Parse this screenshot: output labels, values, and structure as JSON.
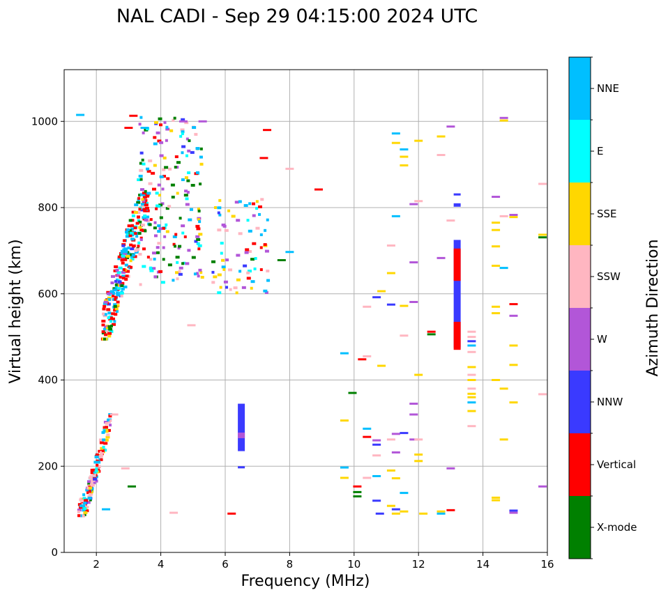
{
  "chart_data": {
    "type": "scatter",
    "title": "NAL CADI - Sep 29 04:15:00 2024 UTC",
    "xlabel": "Frequency (MHz)",
    "ylabel": "Virtual height (km)",
    "xlim": [
      1,
      16
    ],
    "ylim": [
      0,
      1120
    ],
    "xticks": [
      2,
      4,
      6,
      8,
      10,
      12,
      14,
      16
    ],
    "yticks": [
      0,
      200,
      400,
      600,
      800,
      1000
    ],
    "grid": true,
    "colorbar": {
      "label": "Azimuth Direction",
      "categories": [
        {
          "name": "X-mode",
          "color": "#008000"
        },
        {
          "name": "Vertical",
          "color": "#ff0000"
        },
        {
          "name": "NNW",
          "color": "#3a3aff"
        },
        {
          "name": "W",
          "color": "#b256d8"
        },
        {
          "name": "SSW",
          "color": "#ffb6c1"
        },
        {
          "name": "SSE",
          "color": "#ffd700"
        },
        {
          "name": "E",
          "color": "#00ffff"
        },
        {
          "name": "NNE",
          "color": "#00bfff"
        }
      ]
    },
    "clusters": [
      {
        "region": "low F-layer trace",
        "f": [
          1.45,
          2.45
        ],
        "h": [
          85,
          320
        ],
        "count": 150
      },
      {
        "region": "F-layer main trace",
        "f": [
          2.2,
          3.6
        ],
        "h": [
          495,
          830
        ],
        "count": 270
      },
      {
        "region": "upper spread",
        "f": [
          3.3,
          5.3
        ],
        "h": [
          620,
          1010
        ],
        "count": 190
      },
      {
        "region": "mid spread",
        "f": [
          5.6,
          7.4
        ],
        "h": [
          600,
          820
        ],
        "count": 75
      }
    ],
    "points": [
      {
        "f": 1.5,
        "h": 1015,
        "dir": "NNE"
      },
      {
        "f": 3.15,
        "h": 1013,
        "dir": "Vertical"
      },
      {
        "f": 3.0,
        "h": 985,
        "dir": "Vertical"
      },
      {
        "f": 3.5,
        "h": 985,
        "dir": "NNE"
      },
      {
        "f": 4.7,
        "h": 1000,
        "dir": "W"
      },
      {
        "f": 5.3,
        "h": 1000,
        "dir": "W"
      },
      {
        "f": 7.3,
        "h": 980,
        "dir": "Vertical"
      },
      {
        "f": 7.2,
        "h": 915,
        "dir": "Vertical"
      },
      {
        "f": 8.0,
        "h": 890,
        "dir": "SSW"
      },
      {
        "f": 8.9,
        "h": 842,
        "dir": "Vertical"
      },
      {
        "f": 7.75,
        "h": 678,
        "dir": "X-mode"
      },
      {
        "f": 8.0,
        "h": 697,
        "dir": "NNE"
      },
      {
        "f": 3.1,
        "h": 153,
        "dir": "X-mode"
      },
      {
        "f": 2.3,
        "h": 100,
        "dir": "NNE"
      },
      {
        "f": 2.9,
        "h": 195,
        "dir": "SSW"
      },
      {
        "f": 2.55,
        "h": 320,
        "dir": "SSW"
      },
      {
        "f": 4.4,
        "h": 92,
        "dir": "SSW"
      },
      {
        "f": 4.95,
        "h": 527,
        "dir": "SSW"
      },
      {
        "f": 6.2,
        "h": 90,
        "dir": "Vertical"
      },
      {
        "f": 9.7,
        "h": 462,
        "dir": "NNE"
      },
      {
        "f": 9.7,
        "h": 306,
        "dir": "SSE"
      },
      {
        "f": 9.7,
        "h": 197,
        "dir": "NNE"
      },
      {
        "f": 9.7,
        "h": 173,
        "dir": "SSE"
      },
      {
        "f": 9.95,
        "h": 370,
        "dir": "X-mode"
      },
      {
        "f": 10.1,
        "h": 153,
        "dir": "Vertical"
      },
      {
        "f": 10.1,
        "h": 140,
        "dir": "X-mode"
      },
      {
        "f": 10.1,
        "h": 130,
        "dir": "X-mode"
      },
      {
        "f": 10.25,
        "h": 448,
        "dir": "Vertical"
      },
      {
        "f": 10.4,
        "h": 455,
        "dir": "SSW"
      },
      {
        "f": 10.4,
        "h": 570,
        "dir": "SSW"
      },
      {
        "f": 10.4,
        "h": 287,
        "dir": "NNE"
      },
      {
        "f": 10.4,
        "h": 268,
        "dir": "Vertical"
      },
      {
        "f": 10.4,
        "h": 173,
        "dir": "SSW"
      },
      {
        "f": 10.7,
        "h": 592,
        "dir": "NNW"
      },
      {
        "f": 10.7,
        "h": 260,
        "dir": "W"
      },
      {
        "f": 10.7,
        "h": 250,
        "dir": "NNW"
      },
      {
        "f": 10.7,
        "h": 225,
        "dir": "SSW"
      },
      {
        "f": 10.7,
        "h": 177,
        "dir": "NNE"
      },
      {
        "f": 10.7,
        "h": 120,
        "dir": "NNW"
      },
      {
        "f": 10.8,
        "h": 90,
        "dir": "NNW"
      },
      {
        "f": 10.85,
        "h": 606,
        "dir": "SSE"
      },
      {
        "f": 10.85,
        "h": 433,
        "dir": "SSE"
      },
      {
        "f": 11.15,
        "h": 712,
        "dir": "SSW"
      },
      {
        "f": 11.15,
        "h": 648,
        "dir": "SSE"
      },
      {
        "f": 11.15,
        "h": 575,
        "dir": "NNW"
      },
      {
        "f": 11.15,
        "h": 262,
        "dir": "SSW"
      },
      {
        "f": 11.15,
        "h": 190,
        "dir": "SSE"
      },
      {
        "f": 11.15,
        "h": 108,
        "dir": "SSE"
      },
      {
        "f": 11.3,
        "h": 972,
        "dir": "NNE"
      },
      {
        "f": 11.3,
        "h": 950,
        "dir": "SSE"
      },
      {
        "f": 11.3,
        "h": 780,
        "dir": "NNE"
      },
      {
        "f": 11.3,
        "h": 275,
        "dir": "W"
      },
      {
        "f": 11.3,
        "h": 232,
        "dir": "W"
      },
      {
        "f": 11.3,
        "h": 172,
        "dir": "SSE"
      },
      {
        "f": 11.3,
        "h": 100,
        "dir": "NNW"
      },
      {
        "f": 11.3,
        "h": 90,
        "dir": "SSE"
      },
      {
        "f": 11.55,
        "h": 935,
        "dir": "NNE"
      },
      {
        "f": 11.55,
        "h": 918,
        "dir": "SSE"
      },
      {
        "f": 11.55,
        "h": 898,
        "dir": "SSE"
      },
      {
        "f": 11.55,
        "h": 572,
        "dir": "SSE"
      },
      {
        "f": 11.55,
        "h": 503,
        "dir": "SSW"
      },
      {
        "f": 11.55,
        "h": 277,
        "dir": "NNW"
      },
      {
        "f": 11.55,
        "h": 138,
        "dir": "NNE"
      },
      {
        "f": 11.55,
        "h": 95,
        "dir": "SSE"
      },
      {
        "f": 11.85,
        "h": 808,
        "dir": "W"
      },
      {
        "f": 11.85,
        "h": 673,
        "dir": "W"
      },
      {
        "f": 11.85,
        "h": 581,
        "dir": "W"
      },
      {
        "f": 11.85,
        "h": 345,
        "dir": "W"
      },
      {
        "f": 11.85,
        "h": 320,
        "dir": "W"
      },
      {
        "f": 11.85,
        "h": 262,
        "dir": "W"
      },
      {
        "f": 12.0,
        "h": 955,
        "dir": "SSE"
      },
      {
        "f": 12.0,
        "h": 815,
        "dir": "SSW"
      },
      {
        "f": 12.0,
        "h": 412,
        "dir": "SSE"
      },
      {
        "f": 12.0,
        "h": 262,
        "dir": "SSW"
      },
      {
        "f": 12.0,
        "h": 227,
        "dir": "SSE"
      },
      {
        "f": 12.0,
        "h": 212,
        "dir": "SSE"
      },
      {
        "f": 12.15,
        "h": 90,
        "dir": "SSE"
      },
      {
        "f": 12.4,
        "h": 512,
        "dir": "Vertical"
      },
      {
        "f": 12.4,
        "h": 506,
        "dir": "X-mode"
      },
      {
        "f": 12.7,
        "h": 965,
        "dir": "SSE"
      },
      {
        "f": 12.7,
        "h": 922,
        "dir": "SSW"
      },
      {
        "f": 12.7,
        "h": 683,
        "dir": "W"
      },
      {
        "f": 12.7,
        "h": 95,
        "dir": "SSE"
      },
      {
        "f": 12.7,
        "h": 90,
        "dir": "NNE"
      },
      {
        "f": 13.0,
        "h": 988,
        "dir": "W"
      },
      {
        "f": 13.0,
        "h": 770,
        "dir": "SSW"
      },
      {
        "f": 13.0,
        "h": 195,
        "dir": "W"
      },
      {
        "f": 13.0,
        "h": 98,
        "dir": "Vertical"
      },
      {
        "f": 13.65,
        "h": 512,
        "dir": "SSW"
      },
      {
        "f": 13.65,
        "h": 500,
        "dir": "SSW"
      },
      {
        "f": 13.65,
        "h": 490,
        "dir": "NNW"
      },
      {
        "f": 13.65,
        "h": 480,
        "dir": "NNE"
      },
      {
        "f": 13.65,
        "h": 465,
        "dir": "SSW"
      },
      {
        "f": 13.65,
        "h": 430,
        "dir": "SSE"
      },
      {
        "f": 13.65,
        "h": 412,
        "dir": "SSW"
      },
      {
        "f": 13.65,
        "h": 400,
        "dir": "SSE"
      },
      {
        "f": 13.65,
        "h": 380,
        "dir": "SSW"
      },
      {
        "f": 13.65,
        "h": 368,
        "dir": "SSE"
      },
      {
        "f": 13.65,
        "h": 360,
        "dir": "SSE"
      },
      {
        "f": 13.65,
        "h": 348,
        "dir": "NNE"
      },
      {
        "f": 13.65,
        "h": 328,
        "dir": "SSE"
      },
      {
        "f": 13.65,
        "h": 293,
        "dir": "SSW"
      },
      {
        "f": 14.4,
        "h": 825,
        "dir": "W"
      },
      {
        "f": 14.4,
        "h": 765,
        "dir": "SSE"
      },
      {
        "f": 14.4,
        "h": 748,
        "dir": "SSE"
      },
      {
        "f": 14.4,
        "h": 710,
        "dir": "SSE"
      },
      {
        "f": 14.4,
        "h": 665,
        "dir": "SSE"
      },
      {
        "f": 14.4,
        "h": 570,
        "dir": "SSE"
      },
      {
        "f": 14.4,
        "h": 555,
        "dir": "SSE"
      },
      {
        "f": 14.4,
        "h": 400,
        "dir": "SSE"
      },
      {
        "f": 14.4,
        "h": 127,
        "dir": "SSE"
      },
      {
        "f": 14.4,
        "h": 121,
        "dir": "SSE"
      },
      {
        "f": 14.65,
        "h": 1008,
        "dir": "W"
      },
      {
        "f": 14.65,
        "h": 1002,
        "dir": "SSE"
      },
      {
        "f": 14.65,
        "h": 780,
        "dir": "SSW"
      },
      {
        "f": 14.65,
        "h": 660,
        "dir": "NNE"
      },
      {
        "f": 14.65,
        "h": 380,
        "dir": "SSE"
      },
      {
        "f": 14.65,
        "h": 262,
        "dir": "SSE"
      },
      {
        "f": 14.95,
        "h": 783,
        "dir": "W"
      },
      {
        "f": 14.95,
        "h": 778,
        "dir": "SSE"
      },
      {
        "f": 14.95,
        "h": 576,
        "dir": "Vertical"
      },
      {
        "f": 14.95,
        "h": 549,
        "dir": "W"
      },
      {
        "f": 14.95,
        "h": 480,
        "dir": "SSE"
      },
      {
        "f": 14.95,
        "h": 435,
        "dir": "SSE"
      },
      {
        "f": 14.95,
        "h": 348,
        "dir": "SSE"
      },
      {
        "f": 14.95,
        "h": 97,
        "dir": "NNW"
      },
      {
        "f": 14.95,
        "h": 92,
        "dir": "W"
      },
      {
        "f": 15.85,
        "h": 855,
        "dir": "SSW"
      },
      {
        "f": 15.85,
        "h": 737,
        "dir": "SSE"
      },
      {
        "f": 15.85,
        "h": 731,
        "dir": "X-mode"
      },
      {
        "f": 15.85,
        "h": 367,
        "dir": "SSW"
      },
      {
        "f": 15.85,
        "h": 153,
        "dir": "W"
      }
    ],
    "columns": [
      {
        "f": 6.5,
        "h_from": 235,
        "h_to": 345,
        "dir": "NNW"
      },
      {
        "f": 6.5,
        "h_from": 265,
        "h_to": 278,
        "dir": "W"
      },
      {
        "f": 6.5,
        "h_from": 195,
        "h_to": 200,
        "dir": "NNW"
      },
      {
        "f": 13.2,
        "h_from": 475,
        "h_to": 725,
        "dir": "NNW"
      },
      {
        "f": 13.2,
        "h_from": 470,
        "h_to": 535,
        "dir": "Vertical"
      },
      {
        "f": 13.2,
        "h_from": 630,
        "h_to": 705,
        "dir": "Vertical"
      },
      {
        "f": 13.2,
        "h_from": 802,
        "h_to": 810,
        "dir": "NNW"
      },
      {
        "f": 13.2,
        "h_from": 828,
        "h_to": 833,
        "dir": "NNW"
      }
    ]
  }
}
